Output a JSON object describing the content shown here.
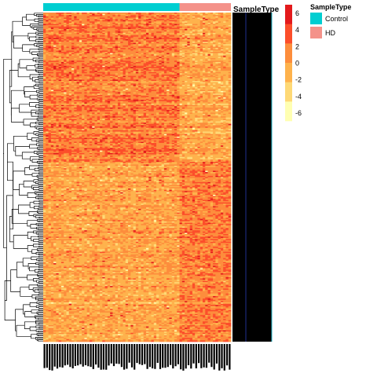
{
  "chart_data": {
    "type": "heatmap",
    "title": "",
    "xlabel": "",
    "ylabel": "",
    "annotation": {
      "title": "SampleType",
      "categories": [
        {
          "name": "Control",
          "color": "#00CED1"
        },
        {
          "name": "HD",
          "color": "#F4928A"
        }
      ],
      "sample_counts": {
        "Control": 53,
        "HD": 20
      }
    },
    "colorbar": {
      "ticks": [
        6,
        4,
        2,
        0,
        -2,
        -4,
        -6
      ],
      "range": [
        -7,
        7
      ],
      "colors": [
        "#FFFFB2",
        "#FED976",
        "#FEB24C",
        "#FD8D3C",
        "#FC4E2A",
        "#E31A1C"
      ]
    },
    "value_range": [
      -6,
      6
    ],
    "row_count": 260,
    "column_count": 73,
    "pattern": {
      "control_mean": 1.5,
      "hd_mean": -0.5,
      "noise": 1.1
    }
  }
}
